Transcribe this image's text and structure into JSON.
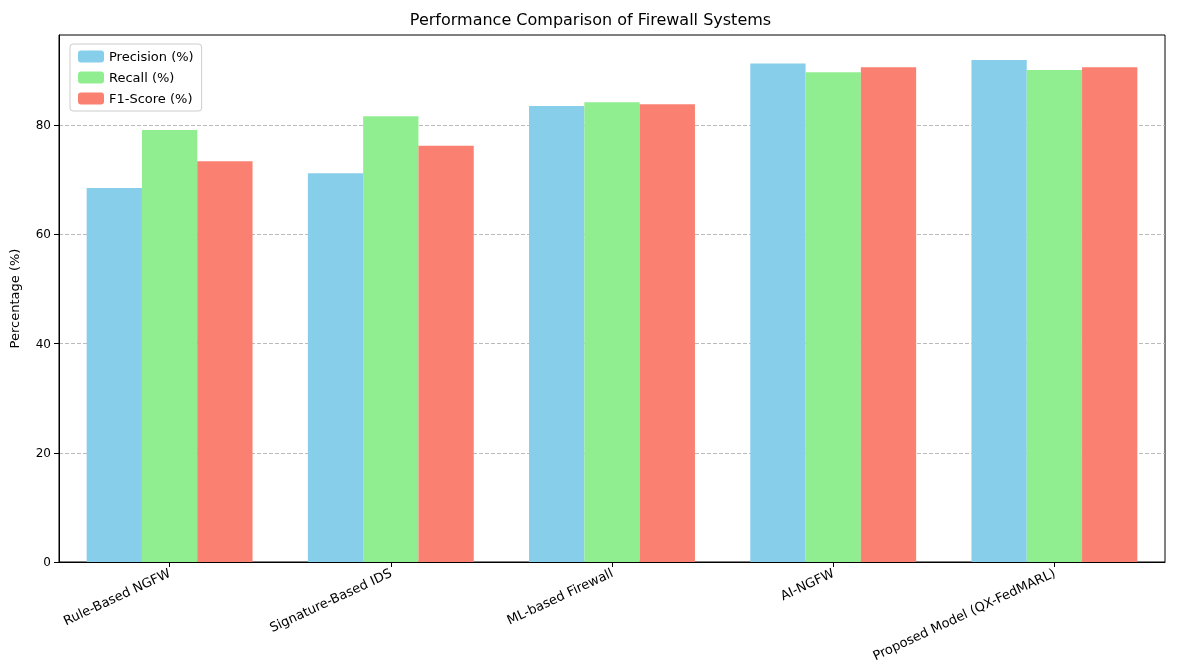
{
  "chart_data": {
    "type": "bar",
    "title": "Performance Comparison of Firewall Systems",
    "ylabel": "Percentage (%)",
    "categories": [
      "Rule-Based NGFW",
      "Signature-Based IDS",
      "ML-based Firewall",
      "AI-NGFW",
      "Proposed Model (QX-FedMARL)"
    ],
    "series": [
      {
        "name": "Precision (%)",
        "color": "#87ceeb",
        "values": [
          68.5,
          71.2,
          83.5,
          91.3,
          91.9
        ]
      },
      {
        "name": "Recall (%)",
        "color": "#90ee90",
        "values": [
          79.1,
          81.6,
          84.2,
          89.7,
          90.1
        ]
      },
      {
        "name": "F1-Score (%)",
        "color": "#fa8072",
        "values": [
          73.4,
          76.2,
          83.8,
          90.6,
          90.6
        ]
      }
    ],
    "ylim": [
      0,
      96.5
    ],
    "yticks": [
      0,
      20,
      40,
      60,
      80
    ],
    "grid": "y",
    "legend": "top left"
  }
}
